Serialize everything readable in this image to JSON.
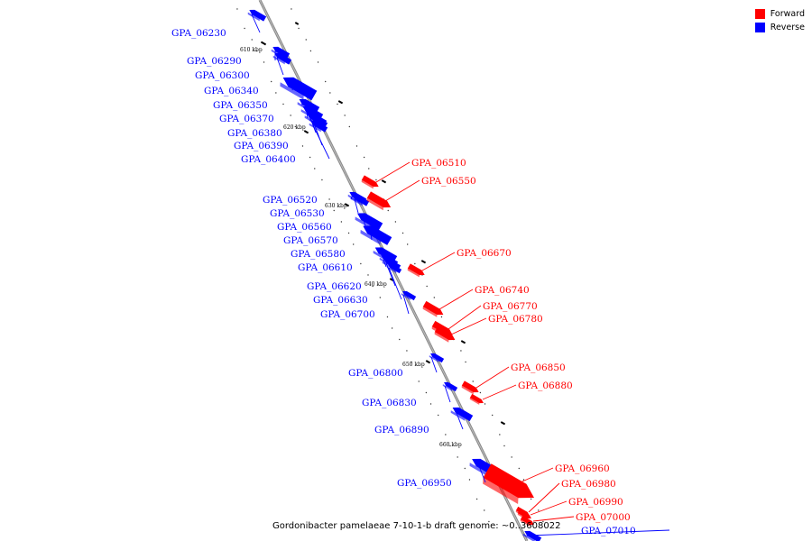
{
  "legend": {
    "forward_label": "Forward",
    "reverse_label": "Reverse",
    "forward_color": "#ff0000",
    "reverse_color": "#0000ff"
  },
  "caption": "Gordonibacter pamelaeae 7-10-1-b draft genome: ~0..3608022",
  "ticks": [
    "610 kbp",
    "620 kbp",
    "630 kbp",
    "640 kbp",
    "650 kbp",
    "660 kbp"
  ],
  "genes": {
    "reverse": [
      "GPA_06230",
      "GPA_06290",
      "GPA_06300",
      "GPA_06340",
      "GPA_06350",
      "GPA_06370",
      "GPA_06380",
      "GPA_06390",
      "GPA_06400",
      "GPA_06520",
      "GPA_06530",
      "GPA_06560",
      "GPA_06570",
      "GPA_06580",
      "GPA_06610",
      "GPA_06620",
      "GPA_06630",
      "GPA_06700",
      "GPA_06800",
      "GPA_06830",
      "GPA_06890",
      "GPA_06950",
      "GPA_07010"
    ],
    "forward": [
      "GPA_06510",
      "GPA_06550",
      "GPA_06670",
      "GPA_06740",
      "GPA_06770",
      "GPA_06780",
      "GPA_06850",
      "GPA_06880",
      "GPA_06960",
      "GPA_06980",
      "GPA_06990",
      "GPA_07000"
    ]
  }
}
